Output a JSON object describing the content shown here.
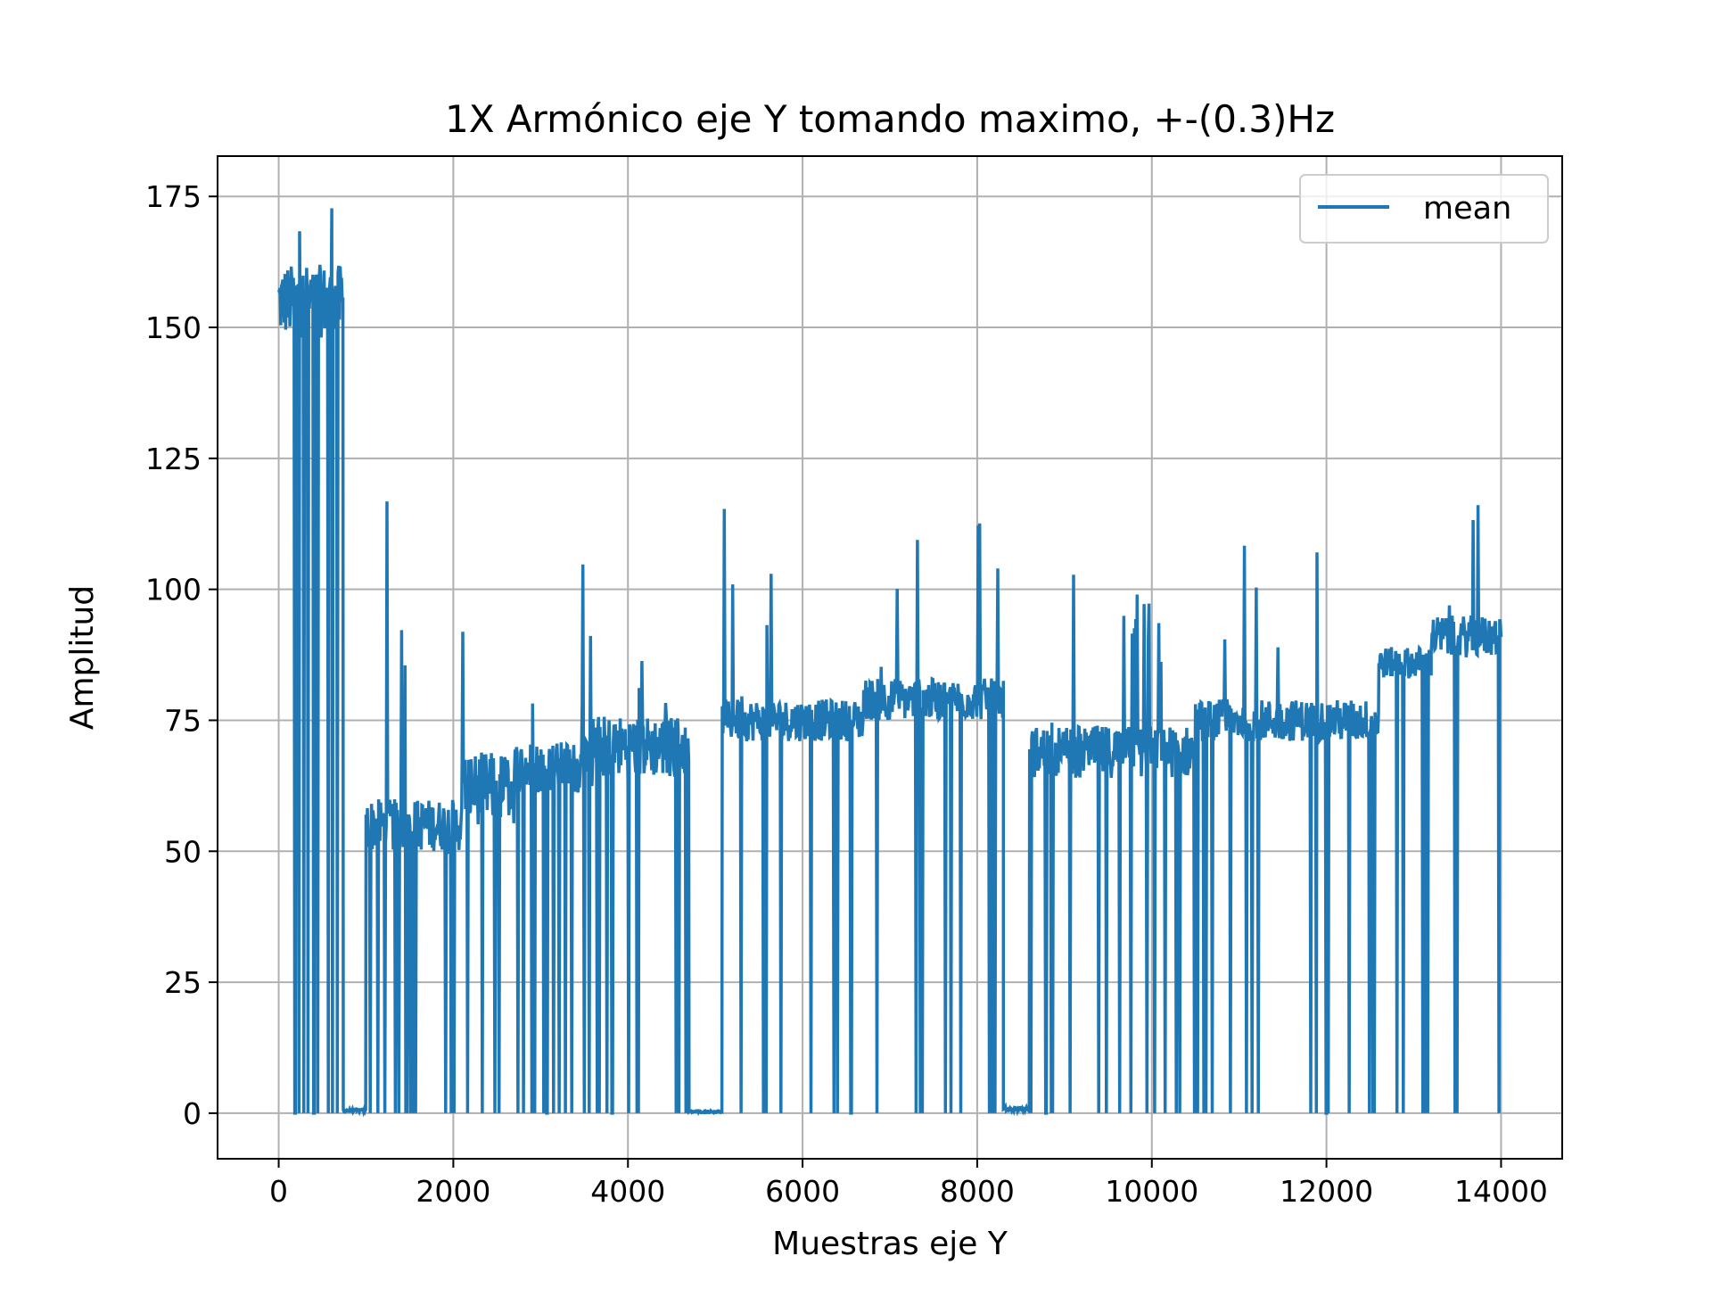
{
  "chart_data": {
    "type": "line",
    "title": "1X Armónico eje Y tomando maximo, +-(0.3)Hz",
    "xlabel": "Muestras eje Y",
    "ylabel": "Amplitud",
    "xlim": [
      -700,
      14700
    ],
    "ylim": [
      -8.7,
      182.7
    ],
    "xticks": [
      0,
      2000,
      4000,
      6000,
      8000,
      10000,
      12000,
      14000
    ],
    "xtick_labels": [
      "0",
      "2000",
      "4000",
      "6000",
      "8000",
      "10000",
      "12000",
      "14000"
    ],
    "yticks": [
      0,
      25,
      50,
      75,
      100,
      125,
      150,
      175
    ],
    "ytick_labels": [
      "0",
      "25",
      "50",
      "75",
      "100",
      "125",
      "150",
      "175"
    ],
    "grid": true,
    "legend_position": "top-right",
    "series": [
      {
        "name": "mean",
        "color": "#1f77b4",
        "segments": [
          {
            "x_start": 0,
            "x_end": 740,
            "baseline": 155,
            "noise": 7,
            "drop_prob": 0.12,
            "spike_prob": 0.03,
            "spike_height": 175
          },
          {
            "x_start": 740,
            "x_end": 1000,
            "baseline": 0.5,
            "noise": 0.3,
            "drop_prob": 0,
            "spike_prob": 0,
            "spike_height": 0
          },
          {
            "x_start": 1000,
            "x_end": 2100,
            "baseline": 55,
            "noise": 5,
            "drop_prob": 0.08,
            "spike_prob": 0.03,
            "spike_height": 118
          },
          {
            "x_start": 2100,
            "x_end": 2700,
            "baseline": 62,
            "noise": 7,
            "drop_prob": 0.08,
            "spike_prob": 0.03,
            "spike_height": 107
          },
          {
            "x_start": 2700,
            "x_end": 3600,
            "baseline": 66,
            "noise": 5,
            "drop_prob": 0.07,
            "spike_prob": 0.03,
            "spike_height": 110
          },
          {
            "x_start": 3600,
            "x_end": 4700,
            "baseline": 70,
            "noise": 6,
            "drop_prob": 0.07,
            "spike_prob": 0.03,
            "spike_height": 100
          },
          {
            "x_start": 4700,
            "x_end": 5080,
            "baseline": 0.3,
            "noise": 0.2,
            "drop_prob": 0,
            "spike_prob": 0,
            "spike_height": 0
          },
          {
            "x_start": 5080,
            "x_end": 6700,
            "baseline": 75,
            "noise": 4,
            "drop_prob": 0.07,
            "spike_prob": 0.03,
            "spike_height": 116
          },
          {
            "x_start": 6700,
            "x_end": 8300,
            "baseline": 79,
            "noise": 4,
            "drop_prob": 0.07,
            "spike_prob": 0.03,
            "spike_height": 118
          },
          {
            "x_start": 8300,
            "x_end": 8600,
            "baseline": 0.8,
            "noise": 0.4,
            "drop_prob": 0,
            "spike_prob": 0,
            "spike_height": 0
          },
          {
            "x_start": 8600,
            "x_end": 10500,
            "baseline": 69,
            "noise": 5,
            "drop_prob": 0.08,
            "spike_prob": 0.03,
            "spike_height": 104
          },
          {
            "x_start": 10500,
            "x_end": 12600,
            "baseline": 75,
            "noise": 4,
            "drop_prob": 0.07,
            "spike_prob": 0.03,
            "spike_height": 109
          },
          {
            "x_start": 12600,
            "x_end": 13200,
            "baseline": 86,
            "noise": 3,
            "drop_prob": 0.05,
            "spike_prob": 0.03,
            "spike_height": 115
          },
          {
            "x_start": 13200,
            "x_end": 14000,
            "baseline": 91,
            "noise": 4,
            "drop_prob": 0.05,
            "spike_prob": 0.03,
            "spike_height": 129
          }
        ]
      }
    ]
  }
}
